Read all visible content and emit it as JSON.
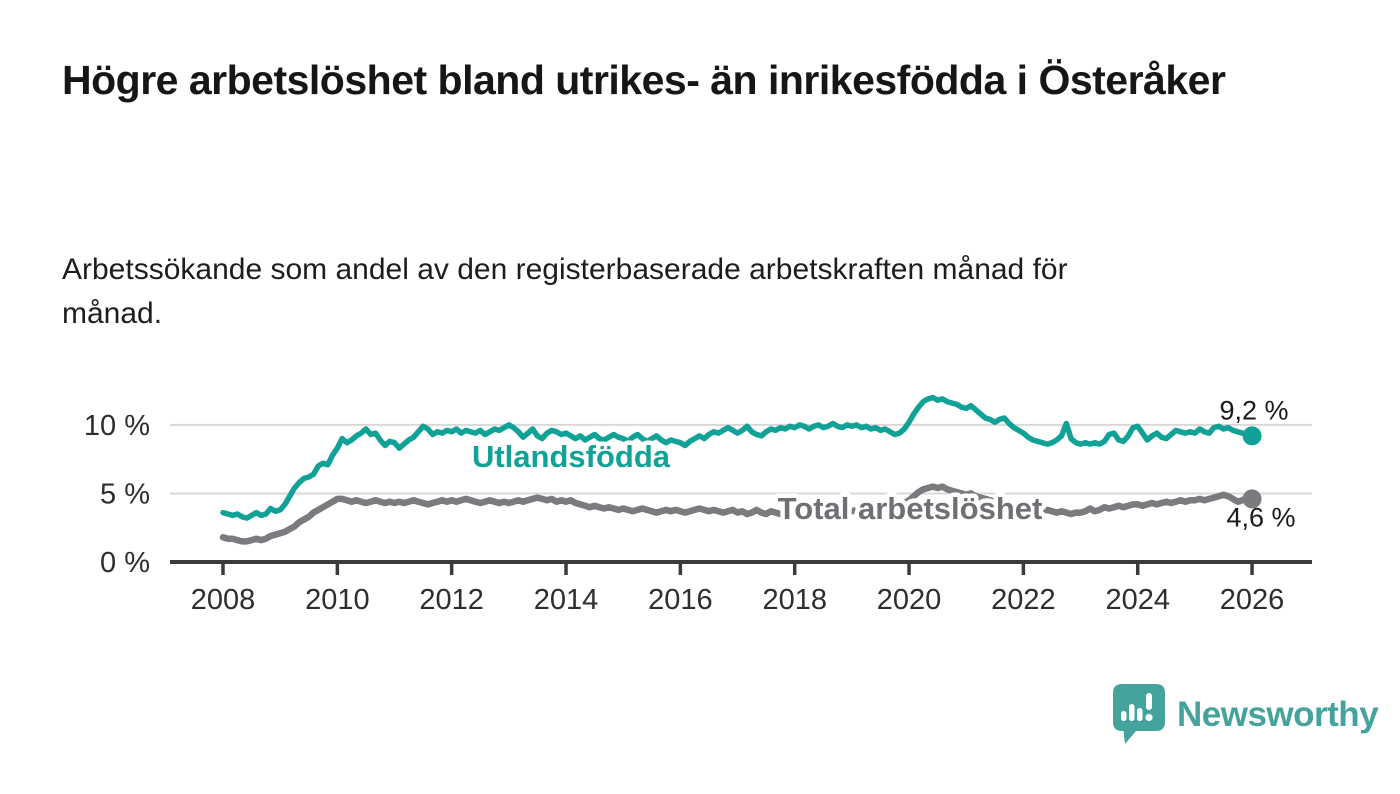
{
  "title": "Högre arbetslöshet bland utrikes- än inrikesfödda i Österåker",
  "subtitle": "Arbetssökande som andel av den registerbaserade arbetskraften månad för månad.",
  "colors": {
    "utlandsfodda": "#10a296",
    "total_line": "#7a7a7f",
    "total_label": "#6f6f74",
    "value_label": "#1a1a1a",
    "axis": "#3b3b3b",
    "tick_text": "#2e2e2e",
    "grid": "#d8d8d8",
    "brand": "#45a39e"
  },
  "branding": {
    "name": "Newsworthy",
    "icon": "bar-chart-speech-bubble-icon"
  },
  "chart_data": {
    "type": "line",
    "title": "Högre arbetslöshet bland utrikes- än inrikesfödda i Österåker",
    "subtitle": "Arbetssökande som andel av den registerbaserade arbetskraften månad för månad.",
    "unit": "percent",
    "frequency": "monthly",
    "x_start": "2008-01",
    "x_end": "2026-01",
    "x_tick_labels": [
      "2008",
      "2010",
      "2012",
      "2014",
      "2016",
      "2018",
      "2020",
      "2022",
      "2024",
      "2026"
    ],
    "y_ticks": [
      {
        "value": 0,
        "label": "0 %"
      },
      {
        "value": 5,
        "label": "5 %"
      },
      {
        "value": 10,
        "label": "10 %"
      }
    ],
    "ylim": [
      0,
      12.5
    ],
    "grid": "horizontal",
    "legend_position": "inline-labels",
    "series": [
      {
        "name": "Utlandsfödda",
        "color": "#10a296",
        "end_label": "9,2 %",
        "end_value": 9.2,
        "values": [
          3.6,
          3.5,
          3.4,
          3.5,
          3.3,
          3.2,
          3.4,
          3.6,
          3.4,
          3.5,
          3.9,
          3.7,
          3.8,
          4.2,
          4.8,
          5.4,
          5.8,
          6.1,
          6.2,
          6.4,
          7.0,
          7.2,
          7.1,
          7.8,
          8.3,
          9.0,
          8.7,
          8.9,
          9.2,
          9.4,
          9.7,
          9.3,
          9.4,
          8.9,
          8.5,
          8.8,
          8.7,
          8.3,
          8.6,
          8.9,
          9.1,
          9.5,
          9.9,
          9.7,
          9.3,
          9.5,
          9.4,
          9.6,
          9.5,
          9.7,
          9.4,
          9.6,
          9.5,
          9.4,
          9.6,
          9.3,
          9.5,
          9.7,
          9.6,
          9.8,
          10.0,
          9.8,
          9.5,
          9.1,
          9.4,
          9.7,
          9.2,
          9.0,
          9.4,
          9.6,
          9.5,
          9.3,
          9.4,
          9.2,
          9.0,
          9.2,
          8.9,
          9.1,
          9.3,
          9.0,
          8.9,
          9.1,
          9.3,
          9.1,
          9.0,
          8.8,
          9.1,
          9.3,
          9.0,
          8.8,
          9.0,
          9.2,
          8.9,
          8.7,
          8.9,
          8.8,
          8.7,
          8.5,
          8.8,
          9.0,
          9.2,
          9.0,
          9.3,
          9.5,
          9.4,
          9.6,
          9.8,
          9.6,
          9.4,
          9.6,
          9.9,
          9.5,
          9.3,
          9.2,
          9.5,
          9.7,
          9.6,
          9.8,
          9.7,
          9.9,
          9.8,
          10.0,
          9.9,
          9.7,
          9.9,
          10.0,
          9.8,
          9.9,
          10.1,
          9.9,
          9.8,
          10.0,
          9.9,
          10.0,
          9.8,
          9.9,
          9.7,
          9.8,
          9.6,
          9.7,
          9.5,
          9.3,
          9.4,
          9.7,
          10.2,
          10.8,
          11.3,
          11.7,
          11.9,
          12.0,
          11.8,
          11.9,
          11.7,
          11.6,
          11.5,
          11.3,
          11.2,
          11.4,
          11.1,
          10.8,
          10.5,
          10.4,
          10.2,
          10.4,
          10.5,
          10.1,
          9.8,
          9.6,
          9.4,
          9.1,
          8.9,
          8.8,
          8.7,
          8.6,
          8.7,
          8.9,
          9.2,
          10.1,
          9.0,
          8.7,
          8.6,
          8.7,
          8.6,
          8.7,
          8.6,
          8.8,
          9.3,
          9.4,
          8.9,
          8.8,
          9.2,
          9.8,
          9.9,
          9.4,
          8.9,
          9.2,
          9.4,
          9.1,
          9.0,
          9.3,
          9.6,
          9.5,
          9.4,
          9.5,
          9.4,
          9.7,
          9.5,
          9.4,
          9.8,
          9.9,
          9.7,
          9.8,
          9.6,
          9.5,
          9.4,
          9.3,
          9.2
        ]
      },
      {
        "name": "Total arbetslöshet",
        "color": "#7a7a7f",
        "end_label": "4,6 %",
        "end_value": 4.6,
        "values": [
          1.8,
          1.7,
          1.7,
          1.6,
          1.5,
          1.5,
          1.6,
          1.7,
          1.6,
          1.7,
          1.9,
          2.0,
          2.1,
          2.2,
          2.4,
          2.6,
          2.9,
          3.1,
          3.3,
          3.6,
          3.8,
          4.0,
          4.2,
          4.4,
          4.6,
          4.6,
          4.5,
          4.4,
          4.5,
          4.4,
          4.3,
          4.4,
          4.5,
          4.4,
          4.3,
          4.4,
          4.3,
          4.4,
          4.3,
          4.4,
          4.5,
          4.4,
          4.3,
          4.2,
          4.3,
          4.4,
          4.5,
          4.4,
          4.5,
          4.4,
          4.5,
          4.6,
          4.5,
          4.4,
          4.3,
          4.4,
          4.5,
          4.4,
          4.3,
          4.4,
          4.3,
          4.4,
          4.5,
          4.4,
          4.5,
          4.6,
          4.7,
          4.6,
          4.5,
          4.6,
          4.4,
          4.5,
          4.4,
          4.5,
          4.3,
          4.2,
          4.1,
          4.0,
          4.1,
          4.0,
          3.9,
          4.0,
          3.9,
          3.8,
          3.9,
          3.8,
          3.7,
          3.8,
          3.9,
          3.8,
          3.7,
          3.6,
          3.7,
          3.8,
          3.7,
          3.8,
          3.7,
          3.6,
          3.7,
          3.8,
          3.9,
          3.8,
          3.7,
          3.8,
          3.7,
          3.6,
          3.7,
          3.8,
          3.6,
          3.7,
          3.5,
          3.6,
          3.8,
          3.6,
          3.5,
          3.7,
          3.6,
          3.5,
          3.6,
          3.7,
          3.6,
          3.5,
          3.7,
          3.6,
          3.8,
          3.7,
          3.6,
          3.8,
          3.7,
          3.6,
          3.7,
          3.8,
          3.7,
          3.8,
          3.9,
          3.8,
          4.0,
          3.9,
          4.0,
          4.1,
          4.0,
          4.1,
          4.2,
          4.3,
          4.5,
          4.8,
          5.1,
          5.3,
          5.4,
          5.5,
          5.4,
          5.5,
          5.3,
          5.2,
          5.1,
          5.0,
          4.9,
          5.0,
          4.8,
          4.7,
          4.6,
          4.5,
          4.4,
          4.3,
          4.2,
          4.1,
          4.0,
          4.0,
          3.9,
          3.8,
          3.9,
          3.8,
          3.7,
          3.8,
          3.7,
          3.6,
          3.7,
          3.6,
          3.5,
          3.6,
          3.6,
          3.7,
          3.9,
          3.7,
          3.8,
          4.0,
          3.9,
          4.0,
          4.1,
          4.0,
          4.1,
          4.2,
          4.2,
          4.1,
          4.2,
          4.3,
          4.2,
          4.3,
          4.4,
          4.3,
          4.4,
          4.5,
          4.4,
          4.5,
          4.5,
          4.6,
          4.5,
          4.6,
          4.7,
          4.8,
          4.9,
          4.8,
          4.6,
          4.4,
          4.5,
          4.7,
          4.6
        ]
      }
    ]
  }
}
